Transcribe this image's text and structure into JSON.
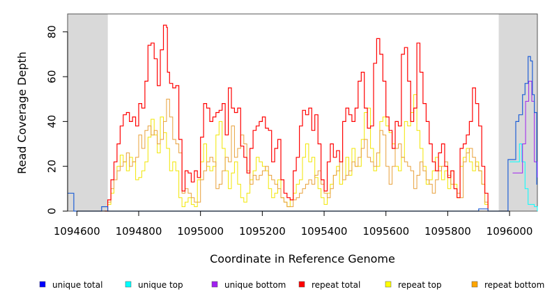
{
  "chart_data": {
    "type": "line",
    "title": "",
    "xlabel": "Coordinate in Reference Genome",
    "ylabel": "Read Coverage Depth",
    "xlim": [
      1094570,
      1096090
    ],
    "ylim": [
      0,
      88
    ],
    "x_ticks": [
      1094600,
      1094800,
      1095000,
      1095200,
      1095400,
      1095600,
      1095800,
      1096000
    ],
    "y_ticks": [
      0,
      20,
      40,
      60,
      80
    ],
    "grid": false,
    "shaded_regions": [
      {
        "x": [
          1094570,
          1094700
        ],
        "color": "#d9d9d9"
      },
      {
        "x": [
          1095965,
          1096090
        ],
        "color": "#d9d9d9"
      }
    ],
    "legend_position": "bottom",
    "series": [
      {
        "name": "unique total",
        "color": "#0000ff",
        "draw_color": "#1f5fd6",
        "step": true,
        "x": [
          1094570,
          1094582,
          1094590,
          1094680,
          1094700,
          1094710,
          1095400,
          1095880,
          1095900,
          1095925,
          1095930,
          1095995,
          1096005,
          1096020,
          1096030,
          1096042,
          1096050,
          1096060,
          1096068,
          1096074,
          1096080,
          1096088,
          1096090
        ],
        "y": [
          8,
          8,
          0,
          2,
          0,
          0,
          0,
          0,
          1,
          1,
          0,
          23,
          23,
          40,
          43,
          52,
          57,
          69,
          67,
          52,
          44,
          12,
          12
        ]
      },
      {
        "name": "unique top",
        "color": "#00ffff",
        "step": true,
        "x": [
          1096000,
          1096020,
          1096032,
          1096040,
          1096050,
          1096060,
          1096080,
          1096090
        ],
        "y": [
          22,
          22,
          30,
          22,
          10,
          3,
          2,
          0
        ]
      },
      {
        "name": "unique bottom",
        "color": "#a020f0",
        "step": true,
        "x": [
          1096010,
          1096030,
          1096042,
          1096052,
          1096062,
          1096072,
          1096080,
          1096090
        ],
        "y": [
          17,
          17,
          30,
          49,
          58,
          49,
          22,
          15
        ]
      },
      {
        "name": "repeat total",
        "color": "#ff0000",
        "step": true,
        "x": [
          1094690,
          1094700,
          1094710,
          1094720,
          1094730,
          1094740,
          1094750,
          1094760,
          1094770,
          1094780,
          1094790,
          1094800,
          1094810,
          1094820,
          1094830,
          1094840,
          1094850,
          1094860,
          1094870,
          1094880,
          1094890,
          1094893,
          1094900,
          1094910,
          1094920,
          1094930,
          1094940,
          1094950,
          1094960,
          1094970,
          1094980,
          1094990,
          1095000,
          1095010,
          1095020,
          1095030,
          1095040,
          1095050,
          1095060,
          1095070,
          1095080,
          1095090,
          1095100,
          1095110,
          1095120,
          1095130,
          1095140,
          1095150,
          1095160,
          1095170,
          1095180,
          1095190,
          1095200,
          1095210,
          1095220,
          1095230,
          1095240,
          1095250,
          1095260,
          1095270,
          1095280,
          1095290,
          1095300,
          1095310,
          1095320,
          1095330,
          1095340,
          1095350,
          1095360,
          1095370,
          1095380,
          1095390,
          1095400,
          1095410,
          1095420,
          1095430,
          1095440,
          1095450,
          1095460,
          1095470,
          1095480,
          1095490,
          1095500,
          1095510,
          1095520,
          1095530,
          1095540,
          1095550,
          1095560,
          1095570,
          1095580,
          1095590,
          1095600,
          1095610,
          1095620,
          1095630,
          1095640,
          1095650,
          1095660,
          1095670,
          1095680,
          1095690,
          1095700,
          1095710,
          1095720,
          1095730,
          1095740,
          1095750,
          1095760,
          1095770,
          1095780,
          1095790,
          1095800,
          1095810,
          1095820,
          1095830,
          1095840,
          1095850,
          1095860,
          1095870,
          1095880,
          1095890,
          1095900,
          1095910,
          1095920,
          1095930
        ],
        "y": [
          0,
          5,
          14,
          22,
          30,
          38,
          43,
          44,
          40,
          42,
          38,
          48,
          46,
          58,
          74,
          75,
          68,
          56,
          72,
          83,
          82,
          62,
          57,
          55,
          56,
          32,
          9,
          18,
          17,
          13,
          18,
          15,
          33,
          48,
          46,
          40,
          42,
          44,
          45,
          48,
          34,
          55,
          46,
          44,
          46,
          29,
          24,
          17,
          28,
          36,
          38,
          40,
          42,
          37,
          36,
          22,
          28,
          32,
          14,
          8,
          6,
          5,
          18,
          24,
          38,
          45,
          43,
          46,
          36,
          43,
          30,
          14,
          9,
          22,
          30,
          24,
          27,
          22,
          40,
          46,
          43,
          40,
          46,
          58,
          62,
          46,
          37,
          38,
          66,
          77,
          70,
          58,
          42,
          36,
          28,
          40,
          38,
          70,
          73,
          58,
          40,
          46,
          75,
          62,
          48,
          40,
          30,
          22,
          18,
          26,
          30,
          20,
          15,
          18,
          10,
          6,
          28,
          30,
          34,
          40,
          55,
          48,
          38,
          20,
          8,
          0
        ]
      },
      {
        "name": "repeat top",
        "color": "#ffff00",
        "draw_color": "#f2e600",
        "step": true,
        "x": [
          1094690,
          1094700,
          1094710,
          1094720,
          1094730,
          1094740,
          1094750,
          1094760,
          1094770,
          1094780,
          1094790,
          1094800,
          1094810,
          1094820,
          1094830,
          1094840,
          1094850,
          1094860,
          1094870,
          1094880,
          1094890,
          1094900,
          1094910,
          1094920,
          1094930,
          1094940,
          1094950,
          1094960,
          1094970,
          1094980,
          1094990,
          1095000,
          1095010,
          1095020,
          1095030,
          1095040,
          1095050,
          1095060,
          1095070,
          1095080,
          1095090,
          1095100,
          1095110,
          1095120,
          1095130,
          1095140,
          1095150,
          1095160,
          1095170,
          1095180,
          1095190,
          1095200,
          1095210,
          1095220,
          1095230,
          1095240,
          1095250,
          1095260,
          1095270,
          1095280,
          1095290,
          1095300,
          1095310,
          1095320,
          1095330,
          1095340,
          1095350,
          1095360,
          1095370,
          1095380,
          1095390,
          1095400,
          1095410,
          1095420,
          1095430,
          1095440,
          1095450,
          1095460,
          1095470,
          1095480,
          1095490,
          1095500,
          1095510,
          1095520,
          1095530,
          1095540,
          1095550,
          1095560,
          1095570,
          1095580,
          1095590,
          1095600,
          1095610,
          1095620,
          1095630,
          1095640,
          1095650,
          1095660,
          1095670,
          1095680,
          1095690,
          1095700,
          1095710,
          1095720,
          1095730,
          1095740,
          1095750,
          1095760,
          1095770,
          1095780,
          1095790,
          1095800,
          1095810,
          1095820,
          1095830,
          1095840,
          1095850,
          1095860,
          1095870,
          1095880,
          1095890,
          1095900,
          1095910,
          1095920,
          1095930
        ],
        "y": [
          0,
          3,
          8,
          14,
          20,
          25,
          22,
          18,
          24,
          22,
          14,
          15,
          18,
          22,
          33,
          41,
          34,
          26,
          42,
          35,
          28,
          18,
          22,
          18,
          6,
          2,
          4,
          6,
          3,
          2,
          14,
          22,
          30,
          20,
          18,
          20,
          34,
          40,
          28,
          18,
          10,
          17,
          22,
          12,
          6,
          4,
          8,
          14,
          18,
          24,
          22,
          20,
          18,
          10,
          6,
          8,
          14,
          6,
          4,
          2,
          5,
          8,
          12,
          14,
          24,
          30,
          22,
          24,
          15,
          10,
          6,
          3,
          8,
          12,
          16,
          20,
          12,
          14,
          24,
          16,
          28,
          20,
          20,
          32,
          44,
          46,
          28,
          18,
          20,
          40,
          42,
          38,
          35,
          30,
          20,
          18,
          24,
          40,
          38,
          44,
          52,
          36,
          28,
          20,
          12,
          14,
          18,
          24,
          20,
          14,
          18,
          10,
          18,
          12,
          6,
          20,
          24,
          28,
          22,
          18,
          22,
          18,
          12,
          3,
          0
        ]
      },
      {
        "name": "repeat bottom",
        "color": "#ffa500",
        "draw_color": "#e8a03a",
        "step": true,
        "x": [
          1094690,
          1094700,
          1094710,
          1094720,
          1094730,
          1094740,
          1094750,
          1094760,
          1094770,
          1094780,
          1094790,
          1094800,
          1094810,
          1094820,
          1094830,
          1094840,
          1094850,
          1094860,
          1094870,
          1094880,
          1094890,
          1094900,
          1094910,
          1094920,
          1094930,
          1094940,
          1094950,
          1094960,
          1094970,
          1094980,
          1094990,
          1095000,
          1095010,
          1095020,
          1095030,
          1095040,
          1095050,
          1095060,
          1095070,
          1095080,
          1095090,
          1095100,
          1095110,
          1095120,
          1095130,
          1095140,
          1095150,
          1095160,
          1095170,
          1095180,
          1095190,
          1095200,
          1095210,
          1095220,
          1095230,
          1095240,
          1095250,
          1095260,
          1095270,
          1095280,
          1095290,
          1095300,
          1095310,
          1095320,
          1095330,
          1095340,
          1095350,
          1095360,
          1095370,
          1095380,
          1095390,
          1095400,
          1095410,
          1095420,
          1095430,
          1095440,
          1095450,
          1095460,
          1095470,
          1095480,
          1095490,
          1095500,
          1095510,
          1095520,
          1095530,
          1095540,
          1095550,
          1095560,
          1095570,
          1095580,
          1095590,
          1095600,
          1095610,
          1095620,
          1095630,
          1095640,
          1095650,
          1095660,
          1095670,
          1095680,
          1095690,
          1095700,
          1095710,
          1095720,
          1095730,
          1095740,
          1095750,
          1095760,
          1095770,
          1095780,
          1095790,
          1095800,
          1095810,
          1095820,
          1095830,
          1095840,
          1095850,
          1095860,
          1095870,
          1095880,
          1095890,
          1095900,
          1095910,
          1095920,
          1095930
        ],
        "y": [
          0,
          4,
          10,
          14,
          18,
          20,
          22,
          26,
          20,
          22,
          24,
          34,
          28,
          36,
          38,
          34,
          36,
          30,
          32,
          40,
          50,
          42,
          32,
          30,
          26,
          8,
          10,
          8,
          6,
          4,
          4,
          14,
          18,
          22,
          24,
          22,
          10,
          12,
          18,
          24,
          22,
          38,
          24,
          28,
          34,
          30,
          18,
          12,
          16,
          14,
          16,
          18,
          20,
          16,
          14,
          12,
          10,
          6,
          4,
          2,
          2,
          5,
          6,
          8,
          10,
          12,
          14,
          12,
          16,
          18,
          12,
          8,
          6,
          10,
          16,
          18,
          22,
          14,
          16,
          18,
          22,
          20,
          24,
          28,
          32,
          24,
          22,
          20,
          26,
          36,
          34,
          20,
          12,
          20,
          28,
          30,
          24,
          22,
          20,
          18,
          10,
          16,
          22,
          18,
          14,
          12,
          8,
          14,
          18,
          20,
          22,
          16,
          12,
          10,
          8,
          6,
          22,
          26,
          28,
          24,
          20,
          18,
          12,
          4,
          0
        ]
      }
    ]
  }
}
